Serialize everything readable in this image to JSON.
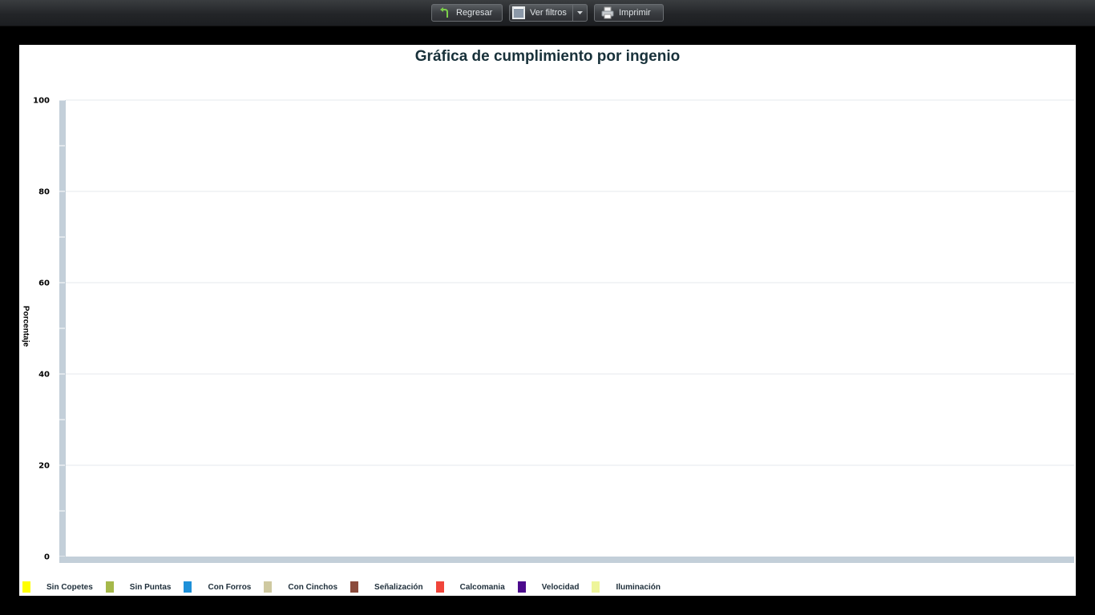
{
  "toolbar": {
    "back_label": "Regresar",
    "filters_label": "Ver filtros",
    "print_label": "Imprimir"
  },
  "icons": {
    "back": "back-arrow-icon",
    "filters": "filter-window-icon",
    "dropdown": "chevron-down-icon",
    "print": "printer-icon"
  },
  "chart_data": {
    "type": "bar",
    "title": "Gráfica de cumplimiento por ingenio",
    "xlabel": "",
    "ylabel": "Porcentaje",
    "ylim": [
      0,
      100
    ],
    "yticks": [
      "0",
      "20",
      "40",
      "60",
      "80",
      "100"
    ],
    "categories": [],
    "grid": true,
    "legend_position": "bottom-left",
    "series": [
      {
        "name": "Sin Copetes",
        "color": "#ffff00",
        "values": []
      },
      {
        "name": "Sin Puntas",
        "color": "#a5b84a",
        "values": []
      },
      {
        "name": "Con Forros",
        "color": "#1e90d8",
        "values": []
      },
      {
        "name": "Con Cinchos",
        "color": "#cfc9a0",
        "values": []
      },
      {
        "name": "Señalización",
        "color": "#8b4b3c",
        "values": []
      },
      {
        "name": "Calcomania",
        "color": "#f0453a",
        "values": []
      },
      {
        "name": "Velocidad",
        "color": "#4b0a8c",
        "values": []
      },
      {
        "name": "Iluminación",
        "color": "#eef59a",
        "values": []
      }
    ]
  }
}
